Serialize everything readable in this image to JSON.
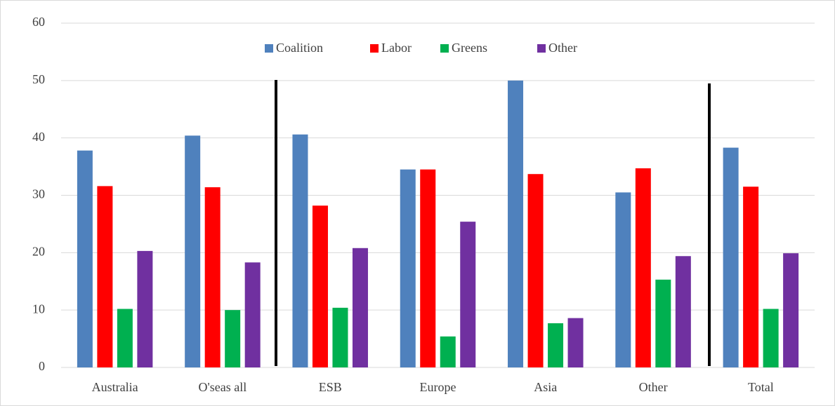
{
  "chart_data": {
    "type": "bar",
    "categories": [
      "Australia",
      "O'seas all",
      "ESB",
      "Europe",
      "Asia",
      "Other",
      "Total"
    ],
    "series": [
      {
        "name": "Coalition",
        "color": "#4f81bd",
        "values": [
          37.8,
          40.4,
          40.6,
          34.5,
          50.0,
          30.5,
          38.3
        ]
      },
      {
        "name": "Labor",
        "color": "#ff0000",
        "values": [
          31.6,
          31.4,
          28.2,
          34.5,
          33.7,
          34.7,
          31.5
        ]
      },
      {
        "name": "Greens",
        "color": "#00b050",
        "values": [
          10.2,
          10.0,
          10.4,
          5.4,
          7.7,
          15.3,
          10.2
        ]
      },
      {
        "name": "Other",
        "color": "#7030a0",
        "values": [
          20.3,
          18.3,
          20.8,
          25.4,
          8.6,
          19.4,
          19.9
        ]
      }
    ],
    "ylim": [
      0,
      60
    ],
    "yticks": [
      0,
      10,
      20,
      30,
      40,
      50,
      60
    ],
    "grid": true,
    "legend": "top"
  }
}
